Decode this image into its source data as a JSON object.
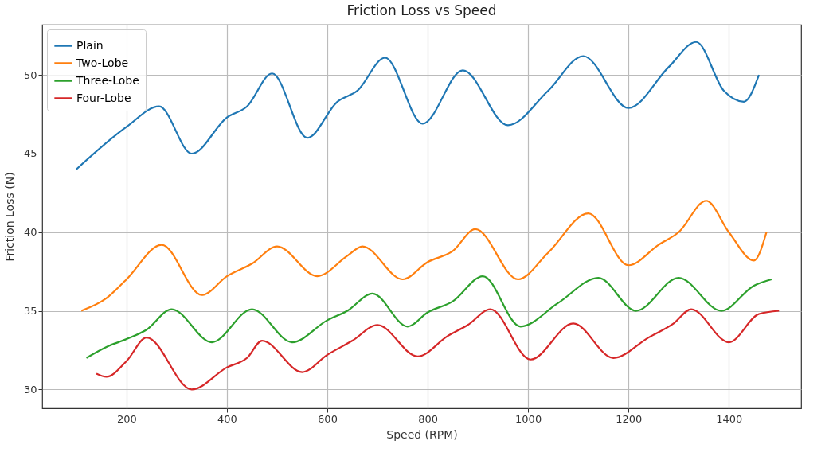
{
  "chart_data": {
    "type": "line",
    "title": "Friction Loss vs Speed",
    "xlabel": "Speed (RPM)",
    "ylabel": "Friction Loss (N)",
    "xlim": [
      32,
      1544
    ],
    "xticks": [
      200,
      400,
      600,
      800,
      1000,
      1200,
      1400
    ],
    "ylim": [
      28.8,
      53.2
    ],
    "yticks": [
      30,
      35,
      40,
      45,
      50
    ],
    "grid": true,
    "legend": "top left",
    "line_style": "solid",
    "marker": "none",
    "series": [
      {
        "name": "Plain",
        "color": "#1f77b4",
        "x": [
          100,
          200,
          265,
          330,
          400,
          440,
          490,
          560,
          620,
          660,
          715,
          790,
          870,
          960,
          1040,
          1110,
          1200,
          1280,
          1335,
          1390,
          1430,
          1460
        ],
        "values": [
          44,
          46.7,
          48,
          45,
          47.3,
          48,
          50.1,
          46,
          48.3,
          49,
          51.1,
          46.9,
          50.3,
          46.8,
          49,
          51.2,
          47.9,
          50.5,
          52.1,
          49,
          48.3,
          50
        ]
      },
      {
        "name": "Two-Lobe",
        "color": "#ff7f0e",
        "x": [
          110,
          160,
          200,
          270,
          350,
          400,
          450,
          500,
          580,
          640,
          670,
          750,
          800,
          850,
          895,
          980,
          1040,
          1120,
          1200,
          1260,
          1300,
          1355,
          1400,
          1450,
          1475
        ],
        "values": [
          35,
          35.8,
          37,
          39.2,
          36,
          37.2,
          38,
          39.1,
          37.2,
          38.5,
          39.1,
          37,
          38.1,
          38.8,
          40.2,
          37,
          38.7,
          41.2,
          37.9,
          39.2,
          40,
          42,
          40,
          38.2,
          40
        ]
      },
      {
        "name": "Three-Lobe",
        "color": "#2ca02c",
        "x": [
          120,
          160,
          200,
          240,
          290,
          370,
          450,
          530,
          600,
          640,
          690,
          760,
          800,
          850,
          910,
          985,
          1060,
          1140,
          1215,
          1300,
          1385,
          1450,
          1485
        ],
        "values": [
          32,
          32.7,
          33.2,
          33.8,
          35.1,
          33,
          35.1,
          33,
          34.4,
          35,
          36.1,
          34,
          34.9,
          35.6,
          37.2,
          34,
          35.5,
          37.1,
          35,
          37.1,
          35,
          36.6,
          37
        ]
      },
      {
        "name": "Four-Lobe",
        "color": "#d62728",
        "x": [
          140,
          160,
          200,
          240,
          330,
          400,
          440,
          470,
          550,
          600,
          650,
          700,
          780,
          840,
          880,
          925,
          1005,
          1090,
          1170,
          1240,
          1290,
          1325,
          1400,
          1460,
          1500
        ],
        "values": [
          31,
          30.8,
          31.8,
          33.3,
          30,
          31.4,
          32,
          33.1,
          31.1,
          32.2,
          33.1,
          34.1,
          32.1,
          33.4,
          34.1,
          35.1,
          31.9,
          34.2,
          32,
          33.3,
          34.2,
          35.1,
          33,
          34.8,
          35
        ]
      }
    ]
  }
}
